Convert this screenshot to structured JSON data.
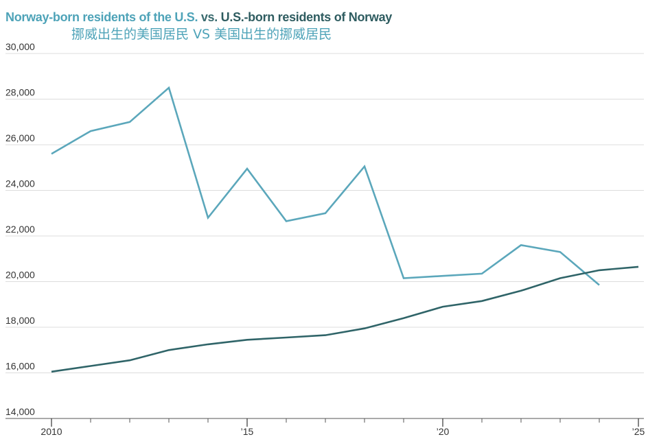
{
  "chart_data": {
    "type": "line",
    "title": {
      "part1": "Norway-born residents of the U.S.",
      "part2": "vs.",
      "part3": "U.S.-born residents of Norway"
    },
    "subtitle": {
      "part1": "挪威出生的美国居民",
      "part2": "VS",
      "part3": "美国出生的挪威居民"
    },
    "xlabel": "",
    "ylabel": "",
    "xlim": [
      2010,
      2025
    ],
    "ylim": [
      14000,
      30000
    ],
    "x_ticks": [
      {
        "value": 2010,
        "label": "2010"
      },
      {
        "value": 2015,
        "label": "’15"
      },
      {
        "value": 2020,
        "label": "’20"
      },
      {
        "value": 2025,
        "label": "’25"
      }
    ],
    "x_minor_ticks": [
      2011,
      2012,
      2013,
      2014,
      2016,
      2017,
      2018,
      2019,
      2021,
      2022,
      2023,
      2024
    ],
    "y_ticks": [
      {
        "value": 14000,
        "label": "14,000"
      },
      {
        "value": 16000,
        "label": "16,000"
      },
      {
        "value": 18000,
        "label": "18,000"
      },
      {
        "value": 20000,
        "label": "20,000"
      },
      {
        "value": 22000,
        "label": "22,000"
      },
      {
        "value": 24000,
        "label": "24,000"
      },
      {
        "value": 26000,
        "label": "26,000"
      },
      {
        "value": 28000,
        "label": "28,000"
      },
      {
        "value": 30000,
        "label": "30,000"
      }
    ],
    "grid": true,
    "series": [
      {
        "name": "Norway-born residents of the U.S.",
        "color": "#5ba7bb",
        "x": [
          2010,
          2011,
          2012,
          2013,
          2014,
          2015,
          2016,
          2017,
          2018,
          2019,
          2020,
          2021,
          2022,
          2023,
          2024
        ],
        "values": [
          25600,
          26600,
          27000,
          28500,
          22800,
          24950,
          22650,
          23000,
          25050,
          20150,
          20250,
          20350,
          21600,
          21300,
          19850
        ]
      },
      {
        "name": "U.S.-born residents of Norway",
        "color": "#2f6468",
        "x": [
          2010,
          2011,
          2012,
          2013,
          2014,
          2015,
          2016,
          2017,
          2018,
          2019,
          2020,
          2021,
          2022,
          2023,
          2024,
          2025
        ],
        "values": [
          16050,
          16300,
          16550,
          17000,
          17250,
          17450,
          17550,
          17650,
          17950,
          18400,
          18900,
          19150,
          19600,
          20150,
          20500,
          20650
        ]
      }
    ]
  }
}
